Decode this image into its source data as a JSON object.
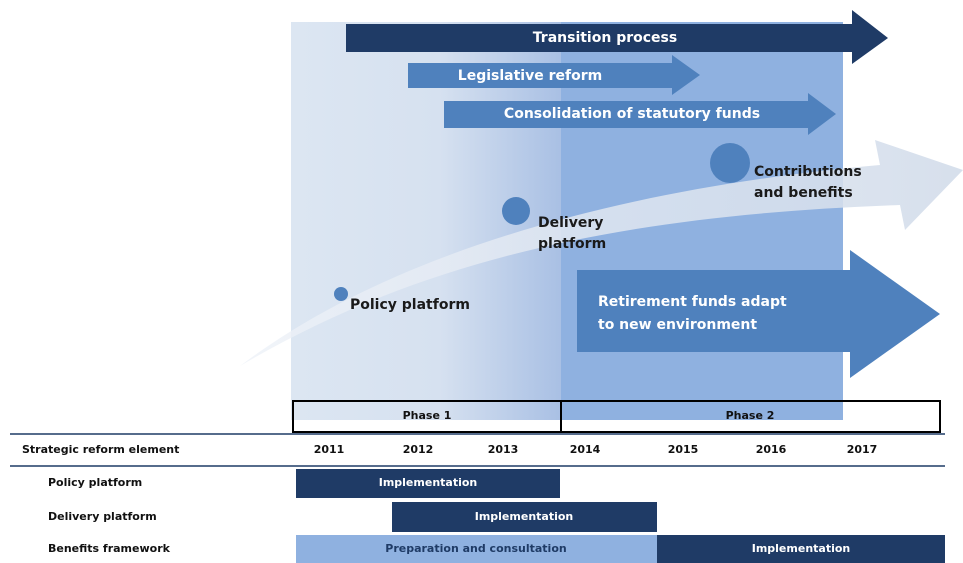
{
  "arrows": [
    {
      "label": "Transition process"
    },
    {
      "label": "Legislative reform"
    },
    {
      "label": "Consolidation of statutory funds"
    }
  ],
  "stages": [
    {
      "label": "Policy platform"
    },
    {
      "label": "Delivery platform"
    },
    {
      "label": "Contributions and benefits"
    }
  ],
  "outcome": {
    "label": "Retirement funds adapt to new environment"
  },
  "phases": [
    "Phase 1",
    "Phase 2"
  ],
  "table": {
    "header": "Strategic reform element",
    "years": [
      "2011",
      "2012",
      "2013",
      "2014",
      "2015",
      "2016",
      "2017"
    ],
    "rows": [
      {
        "label": "Policy platform",
        "bars": [
          "Implementation"
        ]
      },
      {
        "label": "Delivery platform",
        "bars": [
          "Implementation"
        ]
      },
      {
        "label": "Benefits framework",
        "bars": [
          "Preparation and consultation",
          "Implementation"
        ]
      }
    ]
  }
}
